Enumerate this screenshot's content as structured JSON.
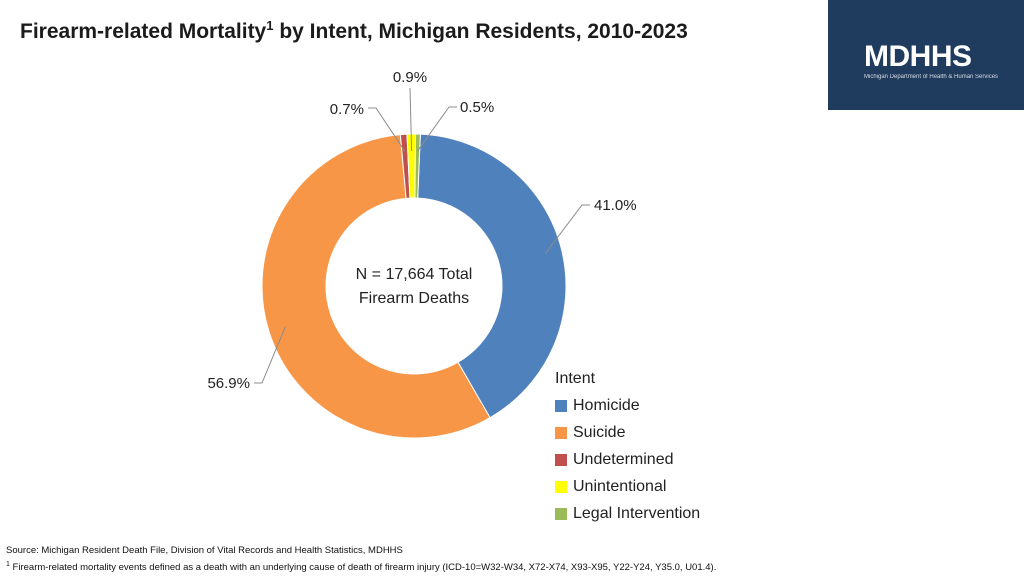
{
  "header": {
    "title_main": "Firearm-related Mortality",
    "title_sup": "1",
    "title_rest": " by Intent, Michigan Residents, 2010-2023"
  },
  "logo": {
    "text": "MDHHS",
    "subtitle": "Michigan Department of Health & Human Services"
  },
  "chart_data": {
    "type": "pie",
    "donut": true,
    "center_label": [
      "N = 17,664 Total",
      "Firearm Deaths"
    ],
    "legend_title": "Intent",
    "legend_position": "bottom-right",
    "slices": [
      {
        "name": "Homicide",
        "value": 41.0,
        "label": "41.0%",
        "color": "#4f81bd"
      },
      {
        "name": "Suicide",
        "value": 56.9,
        "label": "56.9%",
        "color": "#f79646"
      },
      {
        "name": "Undetermined",
        "value": 0.7,
        "label": "0.7%",
        "color": "#c0504d"
      },
      {
        "name": "Unintentional",
        "value": 0.9,
        "label": "0.9%",
        "color": "#ffff00"
      },
      {
        "name": "Legal Intervention",
        "value": 0.5,
        "label": "0.5%",
        "color": "#9bbb59"
      }
    ]
  },
  "footer": {
    "source": "Source: Michigan Resident Death File, Division of Vital Records and Health Statistics, MDHHS",
    "note_sup": "1",
    "note": " Firearm-related mortality events defined as a death with an underlying cause of death of firearm injury (ICD-10=W32-W34, X72-X74, X93-X95, Y22-Y24, Y35.0, U01.4)."
  }
}
